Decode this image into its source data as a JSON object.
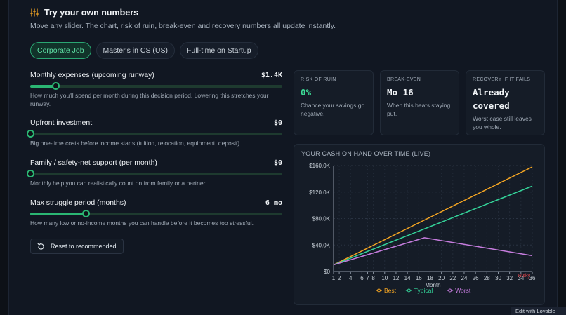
{
  "header": {
    "title": "Try your own numbers",
    "subtitle": "Move any slider. The chart, risk of ruin, break-even and recovery numbers all update instantly."
  },
  "tabs": [
    {
      "label": "Corporate Job",
      "active": true
    },
    {
      "label": "Master's in CS (US)",
      "active": false
    },
    {
      "label": "Full-time on Startup",
      "active": false
    }
  ],
  "sliders": [
    {
      "label": "Monthly expenses (upcoming runway)",
      "value": "$1.4K",
      "fraction": 0.1,
      "help": "How much you'll spend per month during this decision period. Lowering this stretches your runway."
    },
    {
      "label": "Upfront investment",
      "value": "$0",
      "fraction": 0.0,
      "help": "Big one-time costs before income starts (tuition, relocation, equipment, deposit)."
    },
    {
      "label": "Family / safety-net support (per month)",
      "value": "$0",
      "fraction": 0.0,
      "help": "Monthly help you can realistically count on from family or a partner."
    },
    {
      "label": "Max struggle period (months)",
      "value": "6 mo",
      "fraction": 0.22,
      "help": "How many low or no-income months you can handle before it becomes too stressful."
    }
  ],
  "reset_label": "Reset to recommended",
  "cards": {
    "risk": {
      "label": "RISK OF RUIN",
      "value": "0%",
      "desc": "Chance your savings go negative."
    },
    "breakeven": {
      "label": "BREAK-EVEN",
      "value": "Mo 16",
      "desc": "When this beats staying put."
    },
    "recovery": {
      "label": "RECOVERY IF IT FAILS",
      "value_line1": "Already",
      "value_line2": "covered",
      "desc": "Worst case still leaves you whole."
    }
  },
  "chart_title": "YOUR CASH ON HAND OVER TIME (LIVE)",
  "chart_data": {
    "type": "line",
    "xlabel": "Month",
    "ylabel": "",
    "x_ticks": [
      1,
      2,
      4,
      6,
      7,
      8,
      10,
      12,
      14,
      16,
      18,
      20,
      22,
      24,
      26,
      28,
      30,
      32,
      34,
      36
    ],
    "y_ticks": [
      "$0",
      "$40.0K",
      "$80.0K",
      "$120.0K",
      "$160.0K"
    ],
    "ylim": [
      0,
      160000
    ],
    "xlim": [
      1,
      36
    ],
    "annotation": {
      "text": "Risky",
      "x": 34
    },
    "series": [
      {
        "name": "Best",
        "color": "#f5a623",
        "x": [
          1,
          36
        ],
        "y": [
          10000,
          158000
        ]
      },
      {
        "name": "Typical",
        "color": "#34d399",
        "x": [
          1,
          36
        ],
        "y": [
          10000,
          129000
        ]
      },
      {
        "name": "Worst",
        "color": "#c77ddf",
        "x": [
          1,
          17,
          36
        ],
        "y": [
          10000,
          51000,
          24000
        ]
      }
    ],
    "legend_position": "bottom"
  },
  "badge": "Edit with  Lovable",
  "colors": {
    "accent": "#2bb673",
    "background": "#0d1117"
  }
}
